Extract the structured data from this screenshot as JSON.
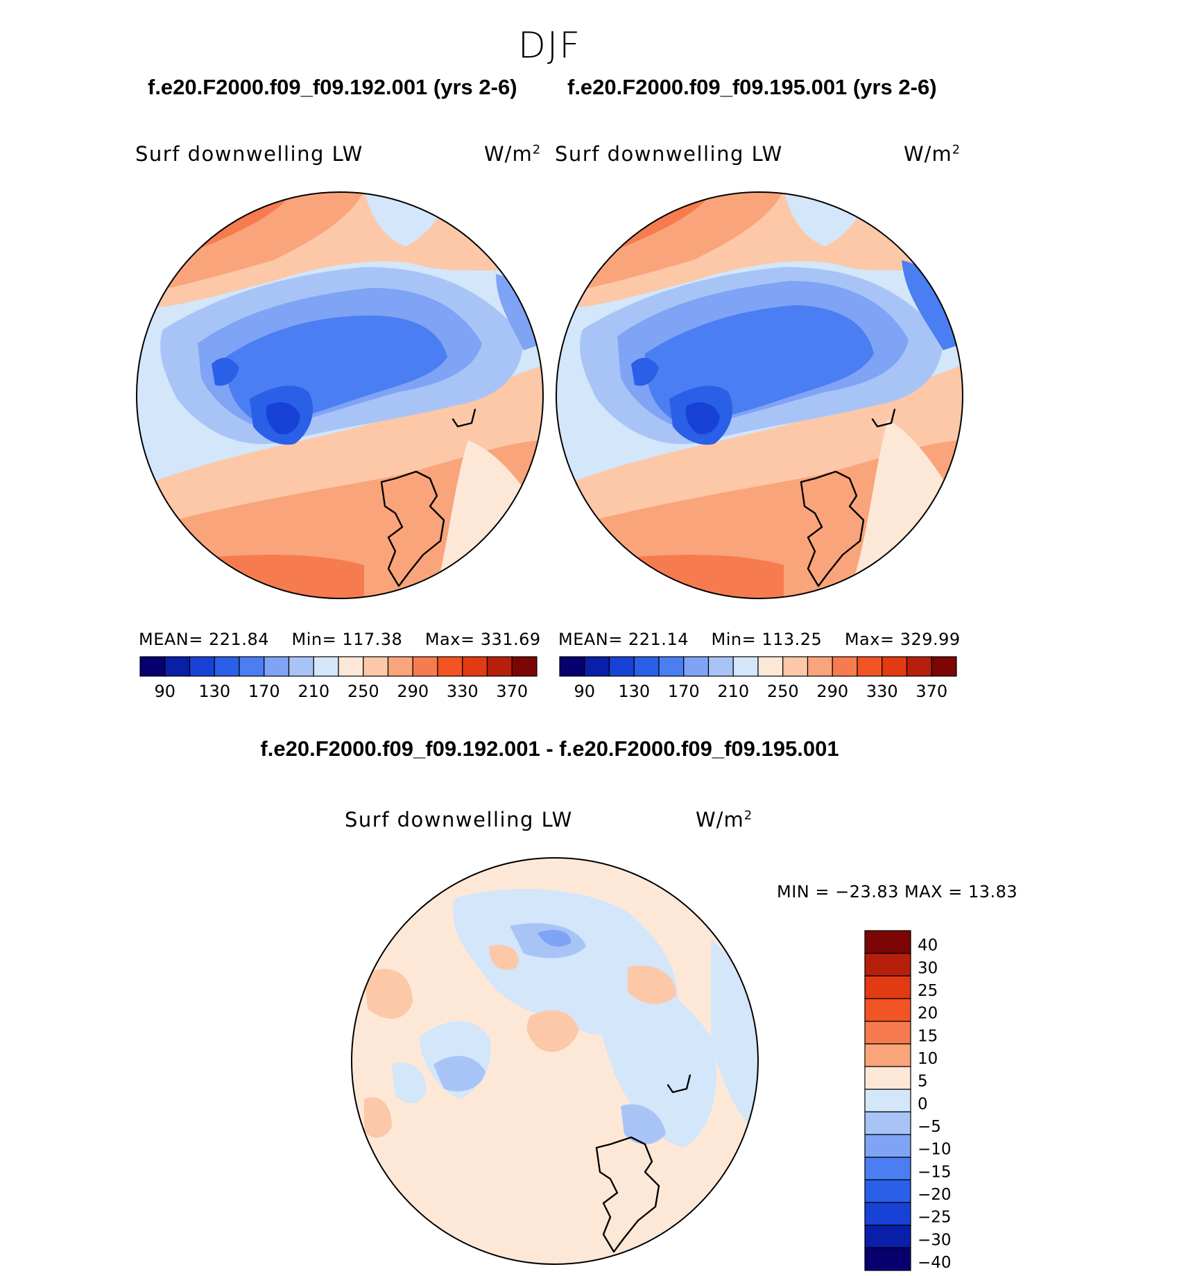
{
  "page": {
    "season": "DJF",
    "case_titles": [
      "f.e20.F2000.f09_f09.192.001 (yrs 2-6)",
      "f.e20.F2000.f09_f09.195.001 (yrs 2-6)"
    ],
    "diff_title": "f.e20.F2000.f09_f09.192.001 - f.e20.F2000.f09_f09.195.001"
  },
  "panels": [
    {
      "variable": "Surf downwelling LW",
      "units_base": "W/m",
      "units_exp": "2",
      "mean_label": "MEAN=",
      "mean": "221.84",
      "min_label": "Min=",
      "min": "117.38",
      "max_label": "Max=",
      "max": "331.69"
    },
    {
      "variable": "Surf downwelling LW",
      "units_base": "W/m",
      "units_exp": "2",
      "mean_label": "MEAN=",
      "mean": "221.14",
      "min_label": "Min=",
      "min": "113.25",
      "max_label": "Max=",
      "max": "329.99"
    }
  ],
  "diff_panel": {
    "variable": "Surf downwelling LW",
    "units_base": "W/m",
    "units_exp": "2",
    "minmax_text": "MIN = −23.83 MAX =   13.83"
  },
  "colorbar_abs": {
    "colors": [
      "#08006e",
      "#0a1fa8",
      "#1842d6",
      "#2a5fe8",
      "#4a7ef2",
      "#7fa3f5",
      "#a8c4f7",
      "#d3e6fa",
      "#fde8d8",
      "#fcc8a8",
      "#f9a47a",
      "#f67b4e",
      "#f25424",
      "#e23a12",
      "#b51f0c",
      "#7b0605"
    ],
    "tick_labels": [
      "90",
      "130",
      "170",
      "210",
      "250",
      "290",
      "330",
      "370"
    ]
  },
  "colorbar_diff": {
    "colors": [
      "#7b0605",
      "#b51f0c",
      "#e23a12",
      "#f25424",
      "#f67b4e",
      "#f9a47a",
      "#fde8d8",
      "#d3e6fa",
      "#a8c4f7",
      "#7fa3f5",
      "#4a7ef2",
      "#2a5fe8",
      "#1842d6",
      "#0a1fa8",
      "#08006e"
    ],
    "tick_labels": [
      "40",
      "30",
      "25",
      "20",
      "15",
      "10",
      "5",
      "0",
      "−5",
      "−10",
      "−15",
      "−20",
      "−25",
      "−30",
      "−40"
    ]
  }
}
